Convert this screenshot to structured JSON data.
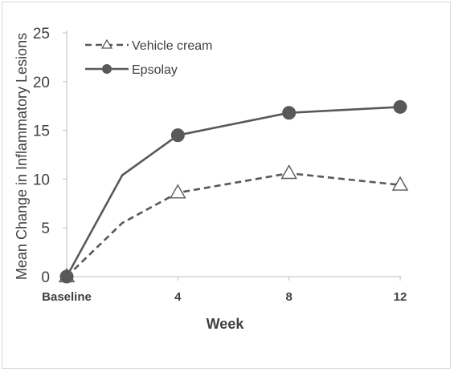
{
  "chart_data": {
    "type": "line",
    "xlabel": "Week",
    "ylabel": "Mean Change in Inflammatory Lesions",
    "ylim": [
      0,
      25
    ],
    "y_ticks": [
      0,
      5,
      10,
      15,
      20,
      25
    ],
    "x_ticks": [
      {
        "value": 0,
        "label": "Baseline"
      },
      {
        "value": 4,
        "label": "4"
      },
      {
        "value": 8,
        "label": "8"
      },
      {
        "value": 12,
        "label": "12"
      }
    ],
    "xlim": [
      0,
      12
    ],
    "grid": false,
    "legend_position": "top-left",
    "series": [
      {
        "name": "Vehicle cream",
        "style": "dashed",
        "marker": "open-triangle",
        "color": "#595959",
        "points": [
          {
            "x": 0,
            "y": 0,
            "marker": true
          },
          {
            "x": 2,
            "y": 5.5,
            "marker": false
          },
          {
            "x": 4,
            "y": 8.6,
            "marker": true
          },
          {
            "x": 8,
            "y": 10.6,
            "marker": true
          },
          {
            "x": 12,
            "y": 9.4,
            "marker": true
          }
        ]
      },
      {
        "name": "Epsolay",
        "style": "solid",
        "marker": "filled-circle",
        "color": "#595959",
        "points": [
          {
            "x": 0,
            "y": 0,
            "marker": true
          },
          {
            "x": 2,
            "y": 10.4,
            "marker": false
          },
          {
            "x": 4,
            "y": 14.5,
            "marker": true
          },
          {
            "x": 8,
            "y": 16.8,
            "marker": true
          },
          {
            "x": 12,
            "y": 17.4,
            "marker": true
          }
        ]
      }
    ]
  }
}
